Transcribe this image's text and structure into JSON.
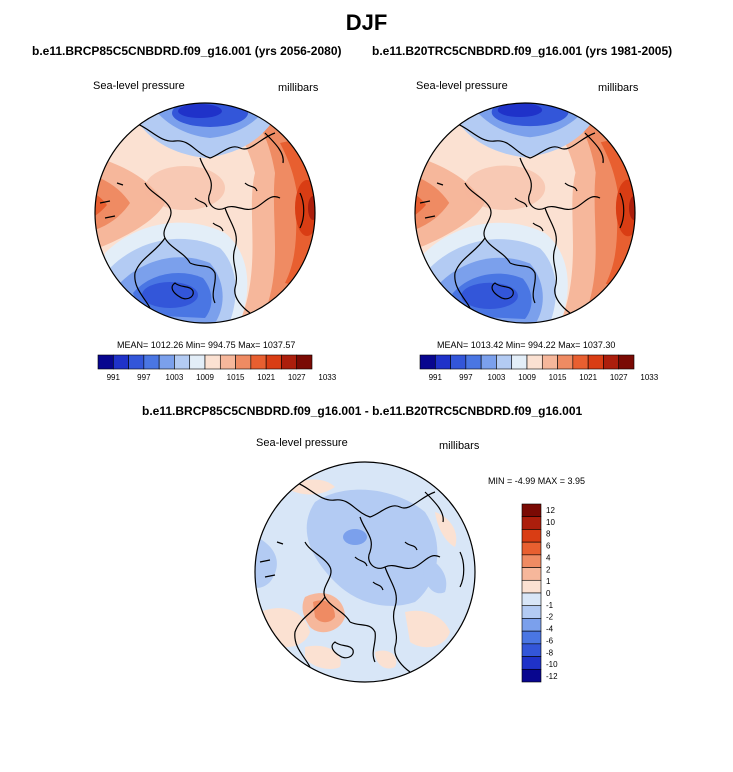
{
  "figure": {
    "title": "DJF"
  },
  "colors": {
    "scale12": [
      "#08068f",
      "#1f32c9",
      "#3356d9",
      "#4a76e3",
      "#7ba0ec",
      "#b3cbf3",
      "#e3eef8",
      "#fbe1d2",
      "#f6b79b",
      "#ef8b63",
      "#e85f30",
      "#d93d14",
      "#ac1e0c",
      "#7a0a04"
    ],
    "diff": [
      "#08068f",
      "#1f32c9",
      "#3356d9",
      "#4a76e3",
      "#7ba0ec",
      "#b3cbf3",
      "#d8e6f7",
      "#fbe1d2",
      "#f6b79b",
      "#ef8b63",
      "#e85f30",
      "#d93d14",
      "#ac1e0c",
      "#7a0a04"
    ]
  },
  "chart_data": [
    {
      "type": "heatmap",
      "projection": "polar-stereographic",
      "title": "b.e11.BRCP85C5CNBDRD.f09_g16.001 (yrs 2056-2080)",
      "left_label": "Sea-level pressure",
      "right_label": "millibars",
      "stats": "MEAN= 1012.26   Min= 994.75   Max= 1037.57",
      "colorbar_ticks": [
        "991",
        "997",
        "1003",
        "1009",
        "1015",
        "1021",
        "1027",
        "1033"
      ],
      "colorbar_levels": 14
    },
    {
      "type": "heatmap",
      "projection": "polar-stereographic",
      "title": "b.e11.B20TRC5CNBDRD.f09_g16.001 (yrs 1981-2005)",
      "left_label": "Sea-level pressure",
      "right_label": "millibars",
      "stats": "MEAN= 1013.42   Min= 994.22   Max= 1037.30",
      "colorbar_ticks": [
        "991",
        "997",
        "1003",
        "1009",
        "1015",
        "1021",
        "1027",
        "1033"
      ],
      "colorbar_levels": 14
    },
    {
      "type": "heatmap",
      "projection": "polar-stereographic",
      "title": "b.e11.BRCP85C5CNBDRD.f09_g16.001 - b.e11.B20TRC5CNBDRD.f09_g16.001",
      "left_label": "Sea-level pressure",
      "right_label": "millibars",
      "stats": "MIN =   -4.99 MAX =    3.95",
      "colorbar_ticks": [
        "12",
        "10",
        "8",
        "6",
        "4",
        "2",
        "1",
        "0",
        "-1",
        "-2",
        "-4",
        "-6",
        "-8",
        "-10",
        "-12"
      ],
      "colorbar_levels": 14
    }
  ]
}
